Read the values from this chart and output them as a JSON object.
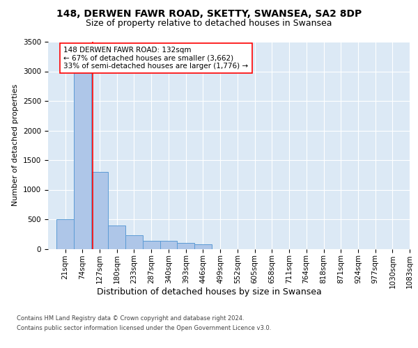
{
  "title1": "148, DERWEN FAWR ROAD, SKETTY, SWANSEA, SA2 8DP",
  "title2": "Size of property relative to detached houses in Swansea",
  "xlabel": "Distribution of detached houses by size in Swansea",
  "ylabel": "Number of detached properties",
  "footnote1": "Contains HM Land Registry data © Crown copyright and database right 2024.",
  "footnote2": "Contains public sector information licensed under the Open Government Licence v3.0.",
  "bar_edges": [
    21,
    74,
    127,
    180,
    233,
    287,
    340,
    393,
    446,
    499,
    552,
    605,
    658,
    711,
    764,
    818,
    871,
    924,
    977,
    1030,
    1083
  ],
  "bar_heights": [
    500,
    3000,
    1300,
    390,
    230,
    140,
    130,
    95,
    80,
    0,
    0,
    0,
    0,
    0,
    0,
    0,
    0,
    0,
    0,
    0
  ],
  "bar_color": "#aec6e8",
  "bar_edge_color": "#5b9bd5",
  "property_line_x": 132,
  "property_line_color": "red",
  "annotation_text": "148 DERWEN FAWR ROAD: 132sqm\n← 67% of detached houses are smaller (3,662)\n33% of semi-detached houses are larger (1,776) →",
  "annotation_box_color": "white",
  "annotation_box_edge_color": "red",
  "ylim": [
    0,
    3500
  ],
  "yticks": [
    0,
    500,
    1000,
    1500,
    2000,
    2500,
    3000,
    3500
  ],
  "background_color": "#dce9f5",
  "fig_background": "#ffffff",
  "title1_fontsize": 10,
  "title2_fontsize": 9,
  "xlabel_fontsize": 9,
  "ylabel_fontsize": 8,
  "tick_fontsize": 7.5,
  "annotation_fontsize": 7.5,
  "footnote_fontsize": 6.0
}
